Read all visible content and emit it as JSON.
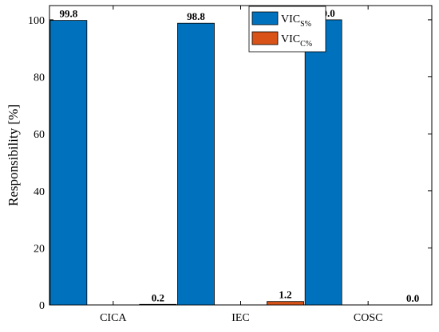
{
  "chart_data": {
    "type": "bar",
    "categories": [
      "CICA",
      "IEC",
      "COSC"
    ],
    "series": [
      {
        "name": "VIC",
        "name_sub": "S%",
        "values": [
          99.8,
          98.8,
          100.0
        ],
        "labels": [
          "99.8",
          "98.8",
          "100.0"
        ],
        "color": "#0072BD"
      },
      {
        "name": "VIC",
        "name_sub": "C%",
        "values": [
          0.2,
          1.2,
          0.0
        ],
        "labels": [
          "0.2",
          "1.2",
          "0.0"
        ],
        "color": "#D95319"
      }
    ],
    "ylabel": "Responsibility [%]",
    "ylim": [
      0,
      105
    ],
    "yticks": [
      "0",
      "20",
      "40",
      "60",
      "80",
      "100"
    ],
    "legend_position": "top-center",
    "grid": false
  }
}
